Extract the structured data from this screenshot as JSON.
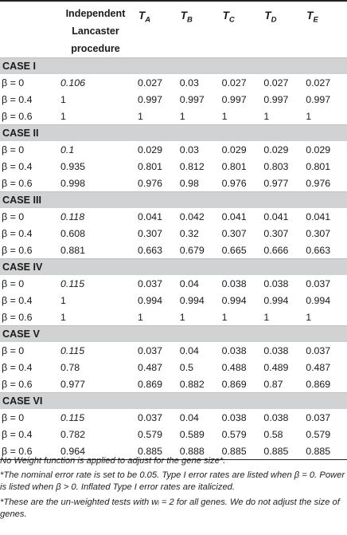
{
  "header": {
    "col_lancaster": "Independent Lancaster procedure",
    "tests": [
      {
        "t": "T",
        "sub": "A"
      },
      {
        "t": "T",
        "sub": "B"
      },
      {
        "t": "T",
        "sub": "C"
      },
      {
        "t": "T",
        "sub": "D"
      },
      {
        "t": "T",
        "sub": "E"
      }
    ]
  },
  "cases": [
    {
      "title": "CASE I",
      "rows": [
        {
          "beta": "β = 0",
          "lan": "0.106",
          "italic": true,
          "vals": [
            "0.027",
            "0.03",
            "0.027",
            "0.027",
            "0.027"
          ]
        },
        {
          "beta": "β = 0.4",
          "lan": "1",
          "italic": false,
          "vals": [
            "0.997",
            "0.997",
            "0.997",
            "0.997",
            "0.997"
          ]
        },
        {
          "beta": "β = 0.6",
          "lan": "1",
          "italic": false,
          "vals": [
            "1",
            "1",
            "1",
            "1",
            "1"
          ]
        }
      ]
    },
    {
      "title": "CASE II",
      "rows": [
        {
          "beta": "β = 0",
          "lan": "0.1",
          "italic": true,
          "vals": [
            "0.029",
            "0.03",
            "0.029",
            "0.029",
            "0.029"
          ]
        },
        {
          "beta": "β = 0.4",
          "lan": "0.935",
          "italic": false,
          "vals": [
            "0.801",
            "0.812",
            "0.801",
            "0.803",
            "0.801"
          ]
        },
        {
          "beta": "β = 0.6",
          "lan": "0.998",
          "italic": false,
          "vals": [
            "0.976",
            "0.98",
            "0.976",
            "0.977",
            "0.976"
          ]
        }
      ]
    },
    {
      "title": "CASE III",
      "rows": [
        {
          "beta": "β = 0",
          "lan": "0.118",
          "italic": true,
          "vals": [
            "0.041",
            "0.042",
            "0.041",
            "0.041",
            "0.041"
          ]
        },
        {
          "beta": "β = 0.4",
          "lan": "0.608",
          "italic": false,
          "vals": [
            "0.307",
            "0.32",
            "0.307",
            "0.307",
            "0.307"
          ]
        },
        {
          "beta": "β = 0.6",
          "lan": "0.881",
          "italic": false,
          "vals": [
            "0.663",
            "0.679",
            "0.665",
            "0.666",
            "0.663"
          ]
        }
      ]
    },
    {
      "title": "CASE IV",
      "rows": [
        {
          "beta": "β = 0",
          "lan": "0.115",
          "italic": true,
          "vals": [
            "0.037",
            "0.04",
            "0.038",
            "0.038",
            "0.037"
          ]
        },
        {
          "beta": "β = 0.4",
          "lan": "1",
          "italic": false,
          "vals": [
            "0.994",
            "0.994",
            "0.994",
            "0.994",
            "0.994"
          ]
        },
        {
          "beta": "β = 0.6",
          "lan": "1",
          "italic": false,
          "vals": [
            "1",
            "1",
            "1",
            "1",
            "1"
          ]
        }
      ]
    },
    {
      "title": "CASE V",
      "rows": [
        {
          "beta": "β = 0",
          "lan": "0.115",
          "italic": true,
          "vals": [
            "0.037",
            "0.04",
            "0.038",
            "0.038",
            "0.037"
          ]
        },
        {
          "beta": "β = 0.4",
          "lan": "0.78",
          "italic": false,
          "vals": [
            "0.487",
            "0.5",
            "0.488",
            "0.489",
            "0.487"
          ]
        },
        {
          "beta": "β = 0.6",
          "lan": "0.977",
          "italic": false,
          "vals": [
            "0.869",
            "0.882",
            "0.869",
            "0.87",
            "0.869"
          ]
        }
      ]
    },
    {
      "title": "CASE VI",
      "rows": [
        {
          "beta": "β = 0",
          "lan": "0.115",
          "italic": true,
          "vals": [
            "0.037",
            "0.04",
            "0.038",
            "0.038",
            "0.037"
          ]
        },
        {
          "beta": "β = 0.4",
          "lan": "0.782",
          "italic": false,
          "vals": [
            "0.579",
            "0.589",
            "0.579",
            "0.58",
            "0.579"
          ]
        },
        {
          "beta": "β = 0.6",
          "lan": "0.964",
          "italic": false,
          "vals": [
            "0.885",
            "0.888",
            "0.885",
            "0.885",
            "0.885"
          ]
        }
      ]
    }
  ],
  "footnotes": {
    "n1": "No Weight function is applied to adjust for the gene size*.",
    "n2": "*The nominal error rate is set to be 0.05. Type I error rates are listed when β = 0. Power is listed when β > 0. Inflated Type I error rates are italicized.",
    "n3": "*These are the un-weighted tests with wᵢ = 2 for all genes. We do not adjust the size of genes."
  },
  "colors": {
    "case_band": "#d1d2d4",
    "rule": "#222222"
  }
}
